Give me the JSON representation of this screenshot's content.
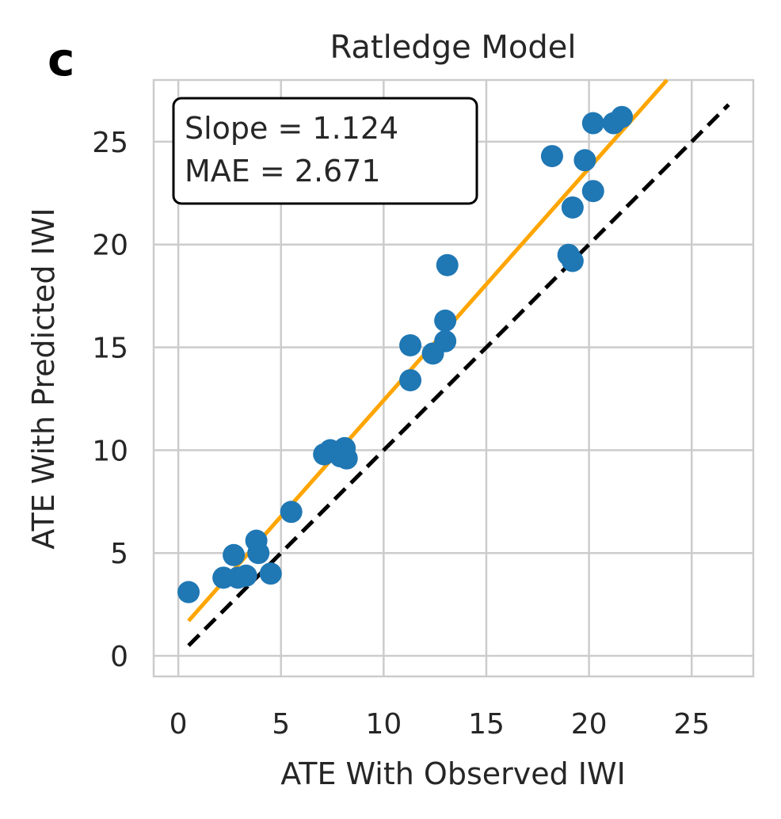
{
  "panel_label": "c",
  "chart_data": {
    "type": "scatter",
    "title": "Ratledge Model",
    "xlabel": "ATE With Observed IWI",
    "ylabel": "ATE With Predicted IWI",
    "xlim": [
      -1.2,
      28.0
    ],
    "ylim": [
      -1.0,
      28.0
    ],
    "xticks": [
      0,
      5,
      10,
      15,
      20,
      25
    ],
    "yticks": [
      0,
      5,
      10,
      15,
      20,
      25
    ],
    "grid": true,
    "annotation_lines": [
      "Slope = 1.124",
      "MAE = 2.671"
    ],
    "annotation_placement": "top-left",
    "colors": {
      "points": "#1f77b4",
      "fit_line": "#ffa500",
      "identity_line": "#000000",
      "grid": "#cccccc"
    },
    "points": [
      {
        "x": 0.5,
        "y": 3.1
      },
      {
        "x": 2.2,
        "y": 3.8
      },
      {
        "x": 2.7,
        "y": 4.9
      },
      {
        "x": 2.9,
        "y": 3.8
      },
      {
        "x": 3.3,
        "y": 3.9
      },
      {
        "x": 3.8,
        "y": 5.6
      },
      {
        "x": 3.9,
        "y": 5.0
      },
      {
        "x": 4.5,
        "y": 4.0
      },
      {
        "x": 5.5,
        "y": 7.0
      },
      {
        "x": 7.1,
        "y": 9.8
      },
      {
        "x": 7.4,
        "y": 10.0
      },
      {
        "x": 7.9,
        "y": 9.7
      },
      {
        "x": 8.1,
        "y": 10.1
      },
      {
        "x": 8.2,
        "y": 9.6
      },
      {
        "x": 11.3,
        "y": 13.4
      },
      {
        "x": 11.3,
        "y": 15.1
      },
      {
        "x": 12.4,
        "y": 14.7
      },
      {
        "x": 13.0,
        "y": 16.3
      },
      {
        "x": 13.0,
        "y": 15.3
      },
      {
        "x": 13.1,
        "y": 19.0
      },
      {
        "x": 18.2,
        "y": 24.3
      },
      {
        "x": 19.0,
        "y": 19.5
      },
      {
        "x": 19.2,
        "y": 19.2
      },
      {
        "x": 19.2,
        "y": 21.8
      },
      {
        "x": 19.8,
        "y": 24.1
      },
      {
        "x": 20.2,
        "y": 22.6
      },
      {
        "x": 20.2,
        "y": 25.9
      },
      {
        "x": 21.2,
        "y": 25.9
      },
      {
        "x": 21.6,
        "y": 26.2
      }
    ],
    "fit_line": {
      "x": [
        0.5,
        23.8
      ],
      "y": [
        1.7,
        28.0
      ]
    },
    "identity_line": {
      "x": [
        0.5,
        26.8
      ],
      "y": [
        0.5,
        26.8
      ]
    }
  }
}
